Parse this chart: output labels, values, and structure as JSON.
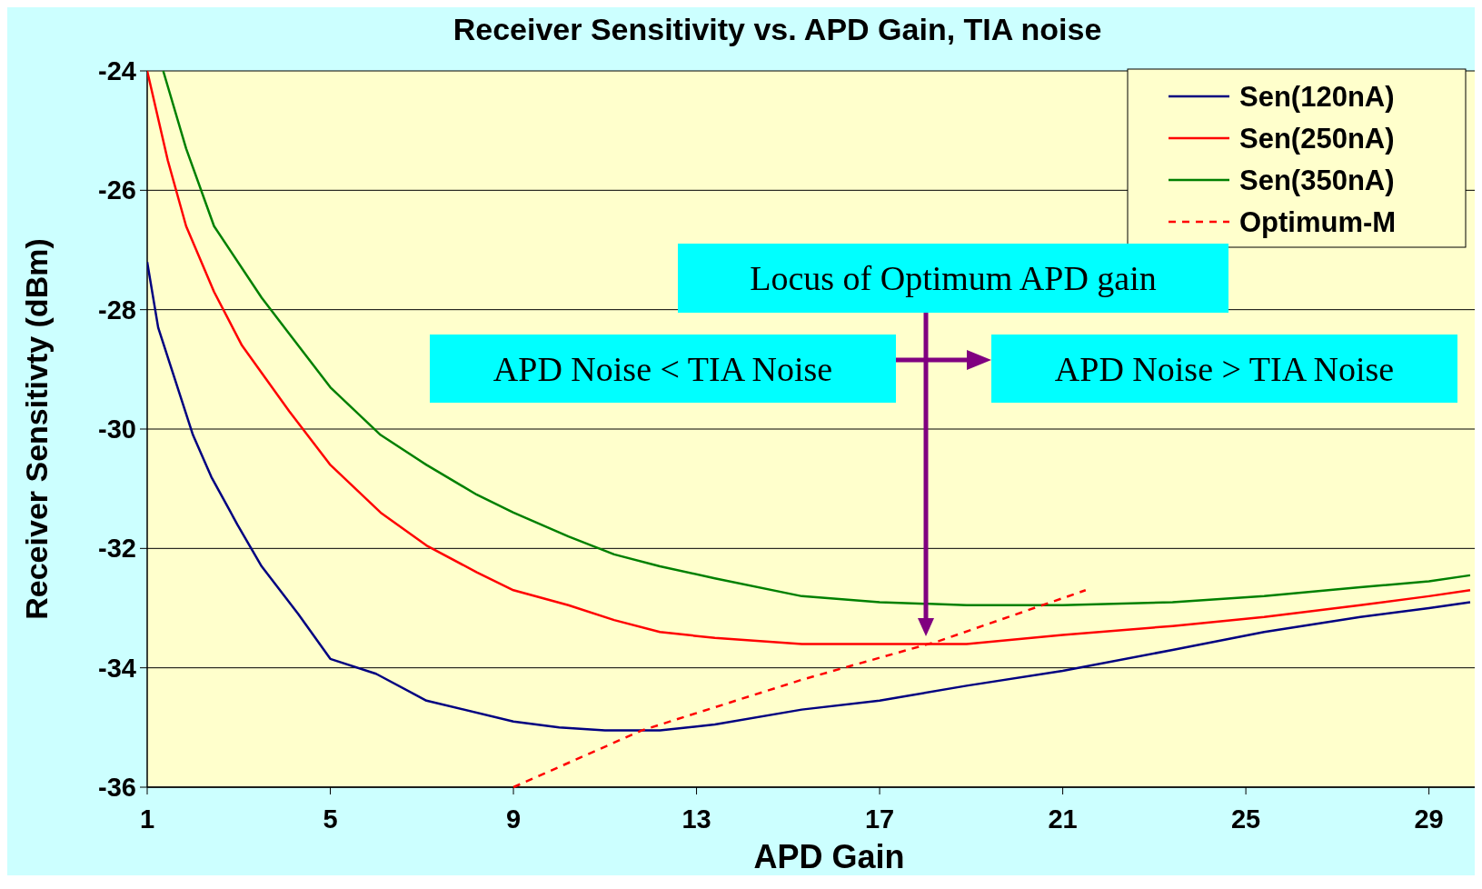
{
  "chart_data": {
    "type": "line",
    "title": "Receiver Sensitivity vs. APD Gain, TIA noise",
    "xlabel": "APD Gain",
    "ylabel": "Receiver Sensitivty (dBm)",
    "xlim": [
      1,
      30
    ],
    "xticks": [
      1,
      5,
      9,
      13,
      17,
      21,
      25,
      29
    ],
    "ylim": [
      -36,
      -24
    ],
    "yticks": [
      -36,
      -34,
      -32,
      -30,
      -28,
      -26,
      -24
    ],
    "grid": "y",
    "legend": "top right",
    "annotations": [
      "Locus of Optimum APD gain",
      "APD Noise < TIA Noise",
      "APD Noise > TIA Noise"
    ],
    "series": [
      {
        "name": "Sen(120nA)",
        "color": "#000080",
        "line_style": "solid",
        "x": [
          1,
          1.24,
          2,
          2.4,
          2.97,
          3.5,
          4.3,
          5,
          6,
          7.1,
          9,
          10,
          11,
          12.2,
          13.4,
          15.3,
          17,
          18.9,
          21,
          23.4,
          25.4,
          27.5,
          29,
          29.9
        ],
        "values": [
          -27.2,
          -28.3,
          -30.1,
          -30.8,
          -31.6,
          -32.3,
          -33.1,
          -33.85,
          -34.1,
          -34.55,
          -34.9,
          -35,
          -35.05,
          -35.05,
          -34.95,
          -34.7,
          -34.55,
          -34.3,
          -34.05,
          -33.7,
          -33.4,
          -33.15,
          -33,
          -32.9
        ]
      },
      {
        "name": "Sen(250nA)",
        "color": "#ff0000",
        "line_style": "solid",
        "x": [
          1,
          1.45,
          1.85,
          2.46,
          3.07,
          4.1,
          5,
          6.1,
          7.1,
          8.2,
          9,
          10.2,
          11.2,
          12.2,
          13.4,
          15.3,
          17,
          18.9,
          21,
          23.4,
          25.4,
          27.5,
          29,
          29.9
        ],
        "values": [
          -24,
          -25.5,
          -26.6,
          -27.7,
          -28.6,
          -29.7,
          -30.6,
          -31.4,
          -31.95,
          -32.4,
          -32.7,
          -32.95,
          -33.2,
          -33.4,
          -33.5,
          -33.6,
          -33.6,
          -33.6,
          -33.45,
          -33.3,
          -33.15,
          -32.95,
          -32.8,
          -32.7
        ]
      },
      {
        "name": "Sen(350nA)",
        "color": "#008000",
        "line_style": "solid",
        "x": [
          1.35,
          1.85,
          2.46,
          3.5,
          4.1,
          5,
          6.1,
          7.1,
          8.2,
          9,
          10.2,
          11.2,
          12.2,
          13.4,
          15.3,
          17,
          18.9,
          21,
          23.4,
          25.4,
          27.5,
          29,
          29.9
        ],
        "values": [
          -24,
          -25.3,
          -26.6,
          -27.8,
          -28.4,
          -29.3,
          -30.1,
          -30.6,
          -31.1,
          -31.4,
          -31.8,
          -32.1,
          -32.3,
          -32.5,
          -32.8,
          -32.9,
          -32.95,
          -32.95,
          -32.9,
          -32.8,
          -32.65,
          -32.55,
          -32.45
        ]
      },
      {
        "name": "Optimum-M",
        "color": "#ff0000",
        "line_style": "dashed",
        "x": [
          9,
          11.8,
          15.3,
          18.3,
          21.5
        ],
        "values": [
          -36,
          -35.05,
          -34.2,
          -33.55,
          -32.7
        ]
      }
    ]
  }
}
